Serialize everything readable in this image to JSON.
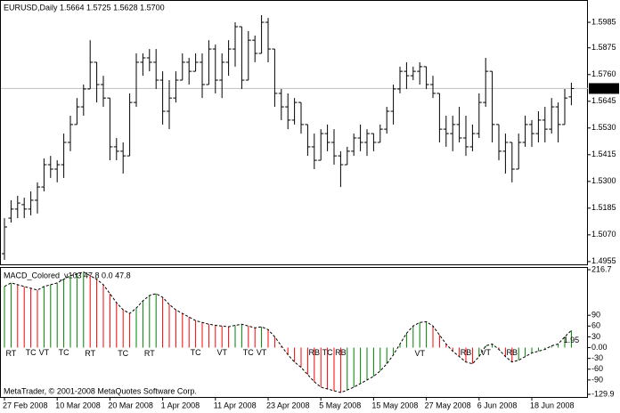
{
  "chart_data": [
    {
      "type": "ohlc",
      "title": "EURUSD,Daily  1.5664 1.5725 1.5628 1.5700",
      "color": "#000000",
      "open": [
        1.4989,
        1.5142,
        1.5181,
        1.52,
        1.5181,
        1.5219,
        1.5276,
        1.5372,
        1.5353,
        1.5372,
        1.5468,
        1.5545,
        1.5621,
        1.5698,
        1.5813,
        1.5717,
        1.5659,
        1.5449,
        1.543,
        1.541,
        1.564,
        1.5813,
        1.5832,
        1.5813,
        1.5736,
        1.5602,
        1.5659,
        1.5736,
        1.5813,
        1.5774,
        1.5813,
        1.5717,
        1.587,
        1.5736,
        1.5813,
        1.587,
        1.5966,
        1.5736,
        1.5908,
        1.5851,
        1.5985,
        1.587,
        1.5679,
        1.5621,
        1.5564,
        1.564,
        1.5545,
        1.5449,
        1.5391,
        1.5506,
        1.5468,
        1.541,
        1.5372,
        1.543,
        1.5487,
        1.5468,
        1.5506,
        1.5468,
        1.5525,
        1.5602,
        1.5698,
        1.5774,
        1.5755,
        1.5774,
        1.5794,
        1.5717,
        1.5679,
        1.5525,
        1.5506,
        1.5545,
        1.5487,
        1.5449,
        1.5506,
        1.564,
        1.5774,
        1.5545,
        1.543,
        1.5468,
        1.5353,
        1.5468,
        1.5545,
        1.5506,
        1.5564,
        1.5525,
        1.5621,
        1.5545,
        1.5664
      ],
      "high": [
        1.5142,
        1.5219,
        1.5238,
        1.523,
        1.5257,
        1.5296,
        1.5399,
        1.541,
        1.5391,
        1.5506,
        1.5583,
        1.5659,
        1.5717,
        1.5908,
        1.5813,
        1.5755,
        1.5659,
        1.5487,
        1.5468,
        1.5679,
        1.5851,
        1.5851,
        1.587,
        1.587,
        1.5774,
        1.5736,
        1.5774,
        1.5851,
        1.5832,
        1.5851,
        1.5851,
        1.5908,
        1.5889,
        1.5851,
        1.5908,
        1.5985,
        1.5966,
        1.5947,
        1.5928,
        1.6016,
        1.6004,
        1.587,
        1.5698,
        1.5679,
        1.5659,
        1.564,
        1.5545,
        1.5506,
        1.5525,
        1.5545,
        1.5525,
        1.543,
        1.5449,
        1.5506,
        1.5545,
        1.5525,
        1.5506,
        1.5545,
        1.5621,
        1.5717,
        1.5794,
        1.5813,
        1.5794,
        1.5813,
        1.5794,
        1.5755,
        1.5679,
        1.5583,
        1.5583,
        1.5621,
        1.5583,
        1.5545,
        1.5679,
        1.5832,
        1.5774,
        1.5545,
        1.5506,
        1.5468,
        1.5506,
        1.5583,
        1.5564,
        1.5602,
        1.5621,
        1.5659,
        1.564,
        1.5698,
        1.5725
      ],
      "low": [
        1.4962,
        1.5123,
        1.5142,
        1.5142,
        1.5154,
        1.5162,
        1.5257,
        1.5315,
        1.5296,
        1.5315,
        1.543,
        1.5545,
        1.5583,
        1.5698,
        1.564,
        1.5621,
        1.5391,
        1.5391,
        1.5334,
        1.541,
        1.5621,
        1.5755,
        1.5774,
        1.5698,
        1.5545,
        1.5525,
        1.564,
        1.5736,
        1.5717,
        1.5774,
        1.5659,
        1.5717,
        1.5679,
        1.5659,
        1.5755,
        1.5794,
        1.5698,
        1.5736,
        1.5813,
        1.5851,
        1.5813,
        1.5621,
        1.5564,
        1.5525,
        1.5545,
        1.5506,
        1.541,
        1.5353,
        1.5391,
        1.543,
        1.5372,
        1.5276,
        1.5372,
        1.541,
        1.543,
        1.541,
        1.543,
        1.5468,
        1.5506,
        1.5545,
        1.5679,
        1.5698,
        1.5736,
        1.5717,
        1.5698,
        1.5659,
        1.5468,
        1.5449,
        1.543,
        1.5468,
        1.541,
        1.543,
        1.5487,
        1.5621,
        1.5468,
        1.5391,
        1.5334,
        1.5296,
        1.5353,
        1.5449,
        1.5449,
        1.5468,
        1.5468,
        1.5506,
        1.5468,
        1.5545,
        1.5628
      ],
      "close": [
        1.5104,
        1.5181,
        1.5207,
        1.5181,
        1.5219,
        1.5276,
        1.5372,
        1.5353,
        1.5372,
        1.5468,
        1.5545,
        1.5621,
        1.5698,
        1.5813,
        1.5717,
        1.5659,
        1.5449,
        1.543,
        1.541,
        1.564,
        1.5813,
        1.5832,
        1.5813,
        1.5736,
        1.5602,
        1.5659,
        1.5736,
        1.5813,
        1.5774,
        1.5813,
        1.5717,
        1.587,
        1.5736,
        1.5813,
        1.587,
        1.5966,
        1.5736,
        1.5908,
        1.5851,
        1.5985,
        1.587,
        1.5679,
        1.5621,
        1.5564,
        1.564,
        1.5545,
        1.5449,
        1.5391,
        1.5506,
        1.5468,
        1.541,
        1.5372,
        1.543,
        1.5487,
        1.5468,
        1.5506,
        1.5468,
        1.5525,
        1.5602,
        1.5698,
        1.5774,
        1.5755,
        1.5774,
        1.5794,
        1.5717,
        1.5679,
        1.5525,
        1.5506,
        1.5545,
        1.5487,
        1.5449,
        1.5506,
        1.564,
        1.5774,
        1.5545,
        1.543,
        1.5468,
        1.5353,
        1.5468,
        1.5545,
        1.5506,
        1.5564,
        1.5525,
        1.5621,
        1.5545,
        1.5659,
        1.57
      ],
      "ylim": [
        1.4943,
        1.6081
      ],
      "yticks": [
        1.5985,
        1.5875,
        {
          "value": 1.576,
          "label": "1.5760"
        },
        1.5645,
        {
          "value": 1.553,
          "label": "1.5530"
        },
        1.5415,
        {
          "value": 1.53,
          "label": "1.5300"
        },
        1.5185,
        {
          "value": 1.507,
          "label": "1.5070"
        },
        1.4955
      ],
      "price_marker": {
        "value": 1.57,
        "label": "1.5700"
      }
    },
    {
      "type": "bar",
      "title": "MACD_Colored_v103 47.8 0.0 47.8",
      "categories": [
        "27 Feb 2008",
        null,
        null,
        null,
        null,
        null,
        null,
        null,
        "10 Mar 2008",
        null,
        null,
        null,
        null,
        null,
        null,
        null,
        "20 Mar 2008",
        null,
        null,
        null,
        null,
        null,
        null,
        null,
        "1 Apr 2008",
        null,
        null,
        null,
        null,
        null,
        null,
        null,
        "11 Apr 2008",
        null,
        null,
        null,
        null,
        null,
        null,
        null,
        "23 Apr 2008",
        null,
        null,
        null,
        null,
        null,
        null,
        null,
        "5 May 2008",
        null,
        null,
        null,
        null,
        null,
        null,
        null,
        "15 May 2008",
        null,
        null,
        null,
        null,
        null,
        null,
        null,
        "27 May 2008",
        null,
        null,
        null,
        null,
        null,
        null,
        null,
        "6 Jun 2008",
        null,
        null,
        null,
        null,
        null,
        null,
        null,
        "18 Jun 2008",
        null,
        null,
        null,
        null,
        null,
        null
      ],
      "values": [
        170,
        180,
        175,
        170,
        165,
        160,
        170,
        175,
        180,
        190,
        200,
        205,
        210,
        200,
        190,
        175,
        150,
        125,
        105,
        95,
        110,
        130,
        145,
        150,
        140,
        120,
        105,
        95,
        85,
        75,
        70,
        65,
        62,
        60,
        58,
        62,
        65,
        60,
        55,
        58,
        50,
        30,
        5,
        -20,
        -40,
        -55,
        -75,
        -95,
        -110,
        -115,
        -120,
        -125,
        -118,
        -110,
        -100,
        -90,
        -80,
        -65,
        -45,
        -20,
        10,
        40,
        60,
        70,
        72,
        60,
        35,
        10,
        -10,
        -25,
        -40,
        -45,
        -25,
        5,
        10,
        -5,
        -25,
        -40,
        -35,
        -25,
        -15,
        -10,
        -5,
        5,
        10,
        30,
        47.8
      ],
      "up_color": "#008000",
      "down_color": "#ff0000",
      "line_color": "#000000",
      "ylim": [
        -129.9,
        216.7
      ],
      "yticks": [
        216.7,
        90,
        60,
        30,
        {
          "value": 0,
          "label": "0.00"
        },
        -30,
        -60,
        -90,
        -129.9
      ],
      "annotations": [
        {
          "text": "RT",
          "index": 1,
          "large": true
        },
        {
          "text": "TC",
          "index": 4,
          "large": false
        },
        {
          "text": "VT",
          "index": 6,
          "large": false
        },
        {
          "text": "TC",
          "index": 9,
          "large": false
        },
        {
          "text": "RT",
          "index": 13,
          "large": true
        },
        {
          "text": "TC",
          "index": 18,
          "large": true
        },
        {
          "text": "RT",
          "index": 22,
          "large": true
        },
        {
          "text": "TC",
          "index": 29,
          "large": false
        },
        {
          "text": "VT",
          "index": 33,
          "large": false
        },
        {
          "text": "TC",
          "index": 37,
          "large": false
        },
        {
          "text": "VT",
          "index": 39,
          "large": false
        },
        {
          "text": "RB",
          "index": 47,
          "large": false
        },
        {
          "text": "TC",
          "index": 49,
          "large": false
        },
        {
          "text": "RB",
          "index": 51,
          "large": false
        },
        {
          "text": "VT",
          "index": 63,
          "large": true
        },
        {
          "text": "RB",
          "index": 70,
          "large": false
        },
        {
          "text": "VT",
          "index": 73,
          "large": false
        },
        {
          "text": "RB",
          "index": 77,
          "large": false
        },
        {
          "text": "1.95",
          "index": 86,
          "large": false
        }
      ],
      "annotation_color": "#6f8fd0",
      "watermark": "MetaTrader, © 2001-2008 MetaQuotes Software Corp."
    }
  ]
}
